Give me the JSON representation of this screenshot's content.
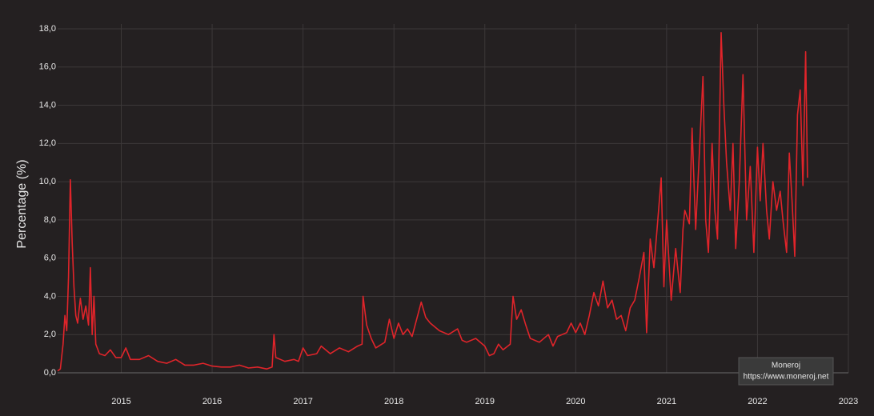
{
  "chart_data": {
    "type": "line",
    "y_label": "Percentage (%)",
    "annotation": [
      "Moneroj",
      "https://www.moneroj.net"
    ],
    "color": "#e0242a",
    "grid": true,
    "xlim": [
      2014.3,
      2023
    ],
    "xticks": [
      2015,
      2016,
      2017,
      2018,
      2019,
      2020,
      2021,
      2022,
      2023
    ],
    "ylim": [
      0,
      18
    ],
    "yticks": [
      {
        "value": 0,
        "label": "0,0"
      },
      {
        "value": 2,
        "label": "2,0"
      },
      {
        "value": 4,
        "label": "4,0"
      },
      {
        "value": 6,
        "label": "6,0"
      },
      {
        "value": 8,
        "label": "8,0"
      },
      {
        "value": 10,
        "label": "10,0"
      },
      {
        "value": 12,
        "label": "12,0"
      },
      {
        "value": 14,
        "label": "14,0"
      },
      {
        "value": 16,
        "label": "16,0"
      },
      {
        "value": 18,
        "label": "18,0"
      }
    ],
    "x": [
      2014.3,
      2014.33,
      2014.36,
      2014.38,
      2014.4,
      2014.42,
      2014.44,
      2014.46,
      2014.48,
      2014.5,
      2014.52,
      2014.55,
      2014.58,
      2014.61,
      2014.64,
      2014.66,
      2014.68,
      2014.7,
      2014.72,
      2014.76,
      2014.82,
      2014.88,
      2014.94,
      2015.0,
      2015.05,
      2015.1,
      2015.2,
      2015.3,
      2015.4,
      2015.5,
      2015.6,
      2015.7,
      2015.8,
      2015.9,
      2016.0,
      2016.1,
      2016.2,
      2016.3,
      2016.4,
      2016.5,
      2016.6,
      2016.66,
      2016.68,
      2016.7,
      2016.8,
      2016.9,
      2016.95,
      2017.0,
      2017.05,
      2017.15,
      2017.2,
      2017.3,
      2017.4,
      2017.5,
      2017.6,
      2017.65,
      2017.66,
      2017.7,
      2017.75,
      2017.8,
      2017.9,
      2017.95,
      2018.0,
      2018.05,
      2018.1,
      2018.15,
      2018.2,
      2018.25,
      2018.3,
      2018.35,
      2018.4,
      2018.5,
      2018.6,
      2018.7,
      2018.75,
      2018.8,
      2018.9,
      2019.0,
      2019.05,
      2019.1,
      2019.15,
      2019.2,
      2019.28,
      2019.31,
      2019.35,
      2019.4,
      2019.45,
      2019.5,
      2019.6,
      2019.7,
      2019.75,
      2019.8,
      2019.9,
      2019.95,
      2020.0,
      2020.05,
      2020.1,
      2020.15,
      2020.2,
      2020.25,
      2020.3,
      2020.35,
      2020.4,
      2020.45,
      2020.5,
      2020.55,
      2020.6,
      2020.65,
      2020.7,
      2020.75,
      2020.78,
      2020.82,
      2020.86,
      2020.9,
      2020.94,
      2020.97,
      2021.0,
      2021.05,
      2021.1,
      2021.15,
      2021.18,
      2021.2,
      2021.25,
      2021.28,
      2021.32,
      2021.36,
      2021.4,
      2021.43,
      2021.46,
      2021.5,
      2021.53,
      2021.56,
      2021.6,
      2021.63,
      2021.66,
      2021.7,
      2021.73,
      2021.76,
      2021.8,
      2021.84,
      2021.88,
      2021.92,
      2021.96,
      2022.0,
      2022.03,
      2022.06,
      2022.1,
      2022.13,
      2022.17,
      2022.21,
      2022.25,
      2022.28,
      2022.32,
      2022.35,
      2022.38,
      2022.41,
      2022.44,
      2022.47,
      2022.5,
      2022.53,
      2022.55
    ],
    "values": [
      0.1,
      0.2,
      1.5,
      3.0,
      2.2,
      5.0,
      10.1,
      6.8,
      4.5,
      3.0,
      2.6,
      3.9,
      2.8,
      3.5,
      2.5,
      5.5,
      2.0,
      4.0,
      1.5,
      1.0,
      0.9,
      1.2,
      0.8,
      0.8,
      1.3,
      0.7,
      0.7,
      0.9,
      0.6,
      0.5,
      0.7,
      0.4,
      0.4,
      0.5,
      0.35,
      0.3,
      0.3,
      0.4,
      0.25,
      0.3,
      0.2,
      0.3,
      2.0,
      0.8,
      0.6,
      0.7,
      0.6,
      1.3,
      0.9,
      1.0,
      1.4,
      1.0,
      1.3,
      1.1,
      1.4,
      1.5,
      4.0,
      2.5,
      1.8,
      1.3,
      1.6,
      2.8,
      1.8,
      2.6,
      2.0,
      2.3,
      1.9,
      2.8,
      3.7,
      2.9,
      2.6,
      2.2,
      2.0,
      2.3,
      1.7,
      1.6,
      1.8,
      1.4,
      0.9,
      1.0,
      1.5,
      1.2,
      1.5,
      4.0,
      2.8,
      3.3,
      2.5,
      1.8,
      1.6,
      2.0,
      1.4,
      1.9,
      2.1,
      2.6,
      2.1,
      2.6,
      2.0,
      3.0,
      4.2,
      3.5,
      4.8,
      3.4,
      3.8,
      2.8,
      3.0,
      2.2,
      3.4,
      3.8,
      5.0,
      6.3,
      2.1,
      7.0,
      5.5,
      7.8,
      10.2,
      4.5,
      8.0,
      3.8,
      6.5,
      4.2,
      7.5,
      8.5,
      7.8,
      12.8,
      7.5,
      11.5,
      15.5,
      8.0,
      6.3,
      12.0,
      8.5,
      7.0,
      17.8,
      14.0,
      11.0,
      8.5,
      12.0,
      6.5,
      10.0,
      15.6,
      8.0,
      10.8,
      6.3,
      11.8,
      9.0,
      12.0,
      8.5,
      7.0,
      10.0,
      8.5,
      9.5,
      8.0,
      6.3,
      11.5,
      9.0,
      6.1,
      13.5,
      14.8,
      9.8,
      16.8,
      10.2
    ]
  }
}
